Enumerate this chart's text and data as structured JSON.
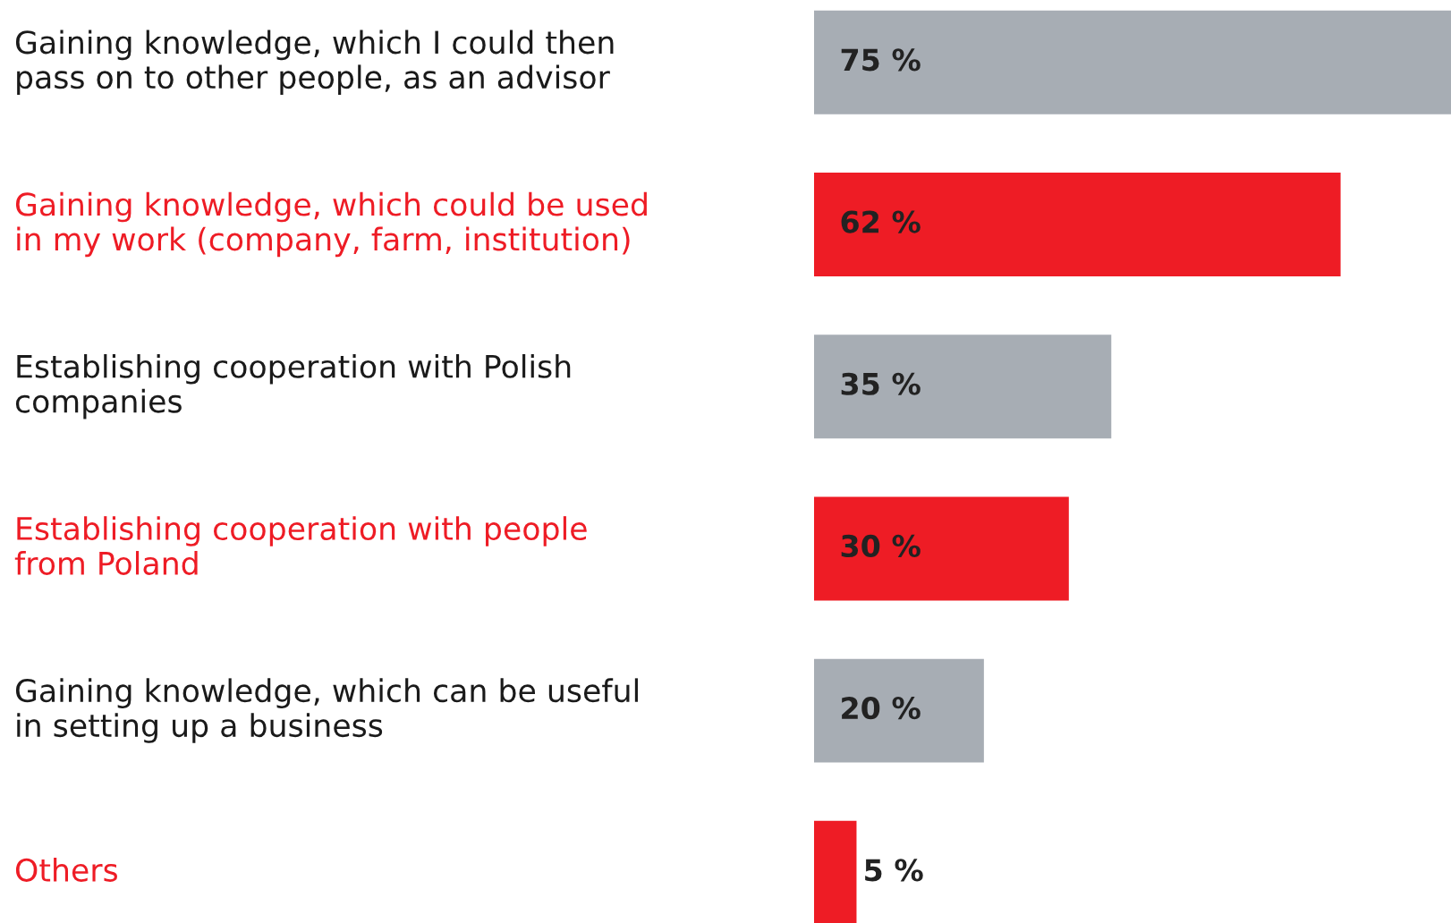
{
  "chart_data": {
    "type": "bar",
    "orientation": "horizontal",
    "categories": [
      "Gaining knowledge, which I could then\npass on to other people, as an advisor",
      "Gaining knowledge, which could be used\nin my work (company, farm, institution)",
      "Establishing cooperation with Polish\ncompanies",
      "Establishing cooperation with people\nfrom Poland",
      "Gaining knowledge, which can be useful\nin setting up a business",
      "Others"
    ],
    "values": [
      75,
      62,
      35,
      30,
      20,
      5
    ],
    "value_labels": [
      "75 %",
      "62 %",
      "35 %",
      "30 %",
      "20 %",
      "5 %"
    ],
    "colors": [
      "#a7adb4",
      "#ee1c25",
      "#a7adb4",
      "#ee1c25",
      "#a7adb4",
      "#ee1c25"
    ]
  }
}
